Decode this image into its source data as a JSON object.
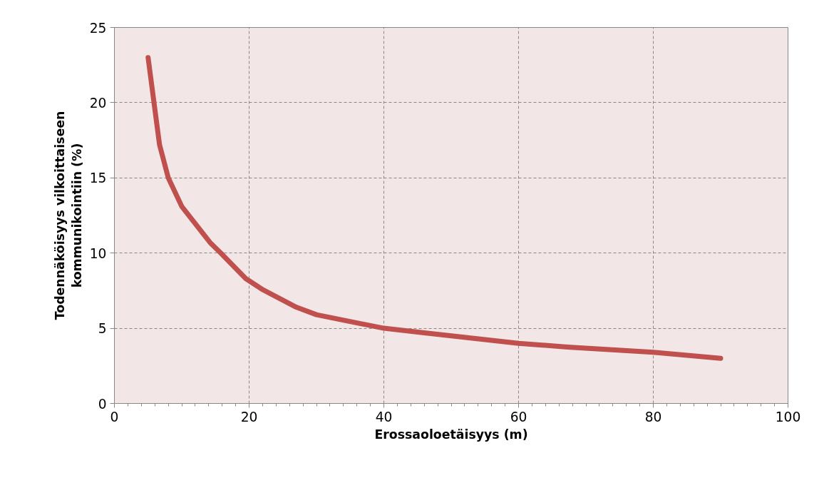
{
  "chart_data": {
    "type": "line",
    "xlabel": "Erossaoloetäisyys (m)",
    "ylabel": "Todennäköisyys vilkoittaiseen kommunikointiin (%)",
    "x": [
      5,
      6.7,
      8,
      10,
      14.2,
      15.8,
      19.5,
      21.9,
      27,
      30,
      35.5,
      40,
      46,
      60,
      67.3,
      80,
      90
    ],
    "series": [
      {
        "color": "#c0504d",
        "values": [
          23,
          17.2,
          15,
          13.1,
          10.7,
          10,
          8.3,
          7.6,
          6.4,
          5.9,
          5.4,
          5.0,
          4.7,
          4.0,
          3.75,
          3.4,
          3.0
        ]
      }
    ],
    "xlim": [
      0,
      100
    ],
    "xticks": [
      0,
      20,
      40,
      60,
      80,
      100
    ],
    "ylim": [
      0,
      25
    ],
    "yticks": [
      0,
      5,
      10,
      15,
      20,
      25
    ],
    "grid": true,
    "marker": "none",
    "line_style": "solid"
  }
}
